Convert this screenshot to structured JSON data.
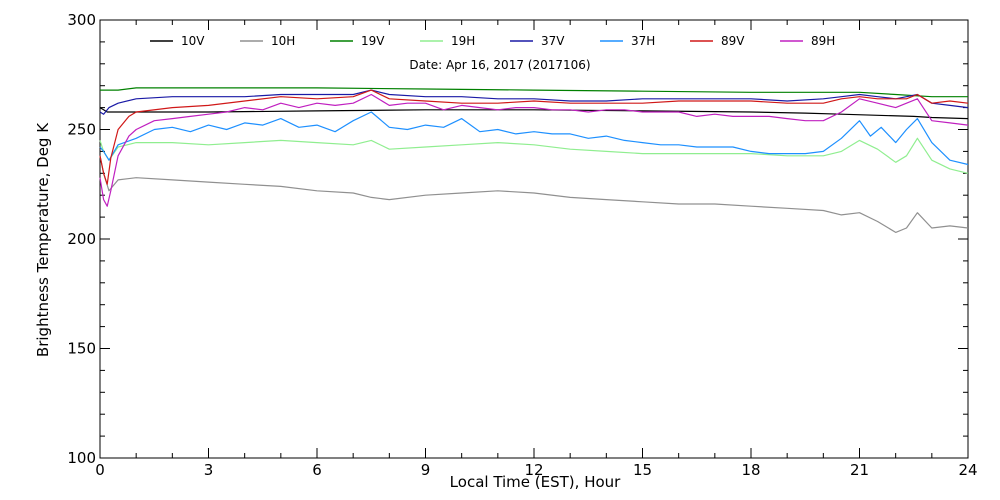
{
  "chart_data": {
    "type": "line",
    "title": "",
    "annotation": "Date: Apr 16, 2017 (2017106)",
    "xlabel": "Local Time (EST), Hour",
    "ylabel": "Brightness Temperature, Deg K",
    "xlim": [
      0,
      24
    ],
    "ylim": [
      100,
      300
    ],
    "xticks": [
      0,
      3,
      6,
      9,
      12,
      15,
      18,
      21,
      24
    ],
    "yticks": [
      100,
      150,
      200,
      250,
      300
    ],
    "grid": false,
    "legend_position": "top",
    "series": [
      {
        "name": "10V",
        "color": "#000000",
        "x": [
          0,
          0.1,
          0.2,
          0.3,
          0.5,
          1,
          3,
          6,
          9,
          12,
          15,
          18,
          19.5,
          20.5,
          21.5,
          22.5,
          23,
          24
        ],
        "y": [
          260,
          259,
          258,
          258,
          258,
          258,
          258,
          258.5,
          259,
          259,
          258.5,
          258,
          257.5,
          257,
          256.5,
          256,
          255.5,
          255
        ]
      },
      {
        "name": "10H",
        "color": "#909090",
        "x": [
          0,
          0.1,
          0.25,
          0.5,
          1,
          2,
          3,
          4,
          5,
          6,
          7,
          7.5,
          8,
          9,
          10,
          11,
          12,
          13,
          14,
          15,
          16,
          17,
          18,
          19,
          20,
          20.5,
          21,
          21.5,
          22,
          22.3,
          22.6,
          23,
          23.5,
          24
        ],
        "y": [
          238,
          230,
          222,
          227,
          228,
          227,
          226,
          225,
          224,
          222,
          221,
          219,
          218,
          220,
          221,
          222,
          221,
          219,
          218,
          217,
          216,
          216,
          215,
          214,
          213,
          211,
          212,
          208,
          203,
          205,
          212,
          205,
          206,
          205
        ]
      },
      {
        "name": "19V",
        "color": "#008000",
        "x": [
          0,
          0.5,
          1,
          3,
          6,
          9,
          12,
          15,
          18,
          21,
          22,
          23,
          24
        ],
        "y": [
          268,
          268,
          269,
          269,
          269,
          268.5,
          268,
          267.5,
          267,
          267,
          266,
          265,
          265
        ]
      },
      {
        "name": "19H",
        "color": "#90ee90",
        "x": [
          0,
          0.1,
          0.25,
          0.5,
          1,
          2,
          3,
          4,
          5,
          6,
          7,
          7.5,
          8,
          9,
          10,
          11,
          12,
          13,
          14,
          15,
          16,
          17,
          18,
          19,
          20,
          20.5,
          21,
          21.5,
          22,
          22.3,
          22.6,
          23,
          23.5,
          24
        ],
        "y": [
          245,
          240,
          236,
          242,
          244,
          244,
          243,
          244,
          245,
          244,
          243,
          245,
          241,
          242,
          243,
          244,
          243,
          241,
          240,
          239,
          239,
          239,
          239,
          238,
          238,
          240,
          245,
          241,
          235,
          238,
          246,
          236,
          232,
          230
        ]
      },
      {
        "name": "37V",
        "color": "#1a1aa6",
        "x": [
          0,
          0.1,
          0.25,
          0.5,
          1,
          2,
          3,
          4,
          5,
          6,
          7,
          7.5,
          8,
          9,
          10,
          11,
          12,
          13,
          14,
          15,
          16,
          17,
          18,
          19,
          20,
          20.5,
          21,
          21.5,
          22,
          22.3,
          22.6,
          23,
          23.5,
          24
        ],
        "y": [
          258,
          257,
          260,
          262,
          264,
          265,
          265,
          265,
          266,
          266,
          266,
          268,
          266,
          265,
          265,
          264,
          264,
          263,
          263,
          264,
          264,
          264,
          264,
          263,
          264,
          265,
          266,
          265,
          264,
          265,
          266,
          262,
          261,
          260
        ]
      },
      {
        "name": "37H",
        "color": "#1e90ff",
        "x": [
          0,
          0.1,
          0.25,
          0.5,
          1,
          1.5,
          2,
          2.5,
          3,
          3.5,
          4,
          4.5,
          5,
          5.5,
          6,
          6.5,
          7,
          7.5,
          8,
          8.5,
          9,
          9.5,
          10,
          10.5,
          11,
          11.5,
          12,
          12.5,
          13,
          13.5,
          14,
          14.5,
          15,
          15.5,
          16,
          16.5,
          17,
          17.5,
          18,
          18.5,
          19,
          19.5,
          20,
          20.5,
          21,
          21.3,
          21.6,
          22,
          22.3,
          22.6,
          23,
          23.5,
          24
        ],
        "y": [
          242,
          240,
          236,
          243,
          246,
          250,
          251,
          249,
          252,
          250,
          253,
          252,
          255,
          251,
          252,
          249,
          254,
          258,
          251,
          250,
          252,
          251,
          255,
          249,
          250,
          248,
          249,
          248,
          248,
          246,
          247,
          245,
          244,
          243,
          243,
          242,
          242,
          242,
          240,
          239,
          239,
          239,
          240,
          246,
          254,
          247,
          251,
          244,
          250,
          255,
          244,
          236,
          234
        ]
      },
      {
        "name": "89V",
        "color": "#d01818",
        "x": [
          0,
          0.1,
          0.2,
          0.3,
          0.5,
          0.8,
          1,
          2,
          3,
          4,
          5,
          6,
          7,
          7.5,
          8,
          9,
          10,
          11,
          12,
          13,
          14,
          15,
          16,
          17,
          18,
          19,
          20,
          20.5,
          21,
          21.5,
          22,
          22.3,
          22.6,
          23,
          23.5,
          24
        ],
        "y": [
          238,
          230,
          225,
          237,
          250,
          256,
          258,
          260,
          261,
          263,
          265,
          264,
          265,
          268,
          264,
          263,
          262,
          262,
          263,
          262,
          262,
          262,
          263,
          263,
          263,
          262,
          262,
          264,
          265,
          264,
          264,
          264,
          266,
          262,
          263,
          262
        ]
      },
      {
        "name": "89H",
        "color": "#c020c0",
        "x": [
          0,
          0.1,
          0.2,
          0.3,
          0.5,
          0.8,
          1,
          1.5,
          2,
          2.5,
          3,
          3.5,
          4,
          4.5,
          5,
          5.5,
          6,
          6.5,
          7,
          7.5,
          8,
          8.5,
          9,
          9.5,
          10,
          10.5,
          11,
          11.5,
          12,
          12.5,
          13,
          13.5,
          14,
          14.5,
          15,
          15.5,
          16,
          16.5,
          17,
          17.5,
          18,
          18.5,
          19,
          19.5,
          20,
          20.5,
          21,
          21.5,
          22,
          22.3,
          22.6,
          23,
          23.5,
          24
        ],
        "y": [
          228,
          218,
          215,
          222,
          238,
          247,
          250,
          254,
          255,
          256,
          257,
          258,
          260,
          259,
          262,
          260,
          262,
          261,
          262,
          266,
          261,
          262,
          262,
          259,
          261,
          260,
          259,
          260,
          260,
          259,
          259,
          258,
          259,
          259,
          258,
          258,
          258,
          256,
          257,
          256,
          256,
          256,
          255,
          254,
          254,
          258,
          264,
          262,
          260,
          262,
          264,
          254,
          253,
          252
        ]
      }
    ]
  }
}
